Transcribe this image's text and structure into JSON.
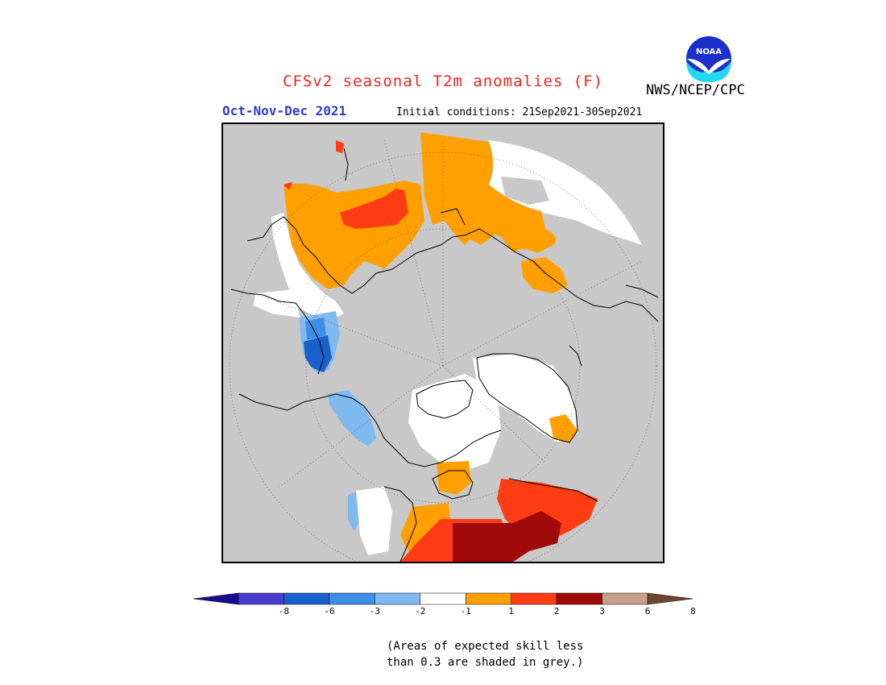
{
  "header": {
    "title": "CFSv2 seasonal T2m anomalies (F)",
    "season": "Oct-Nov-Dec 2021",
    "initial_conditions": "Initial conditions: 21Sep2021-30Sep2021",
    "agency": "NWS/NCEP/CPC"
  },
  "logo": {
    "text": "NOAA",
    "icon": "noaa-logo-icon"
  },
  "legend": {
    "ticks": [
      "-8",
      "-6",
      "-3",
      "-2",
      "-1",
      "1",
      "2",
      "3",
      "6",
      "8"
    ],
    "bins": [
      {
        "color": "#1a0a8f"
      },
      {
        "color": "#4a3ccc"
      },
      {
        "color": "#1a60cc"
      },
      {
        "color": "#3e8ee8"
      },
      {
        "color": "#80b8f0"
      },
      {
        "color": "#ffffff"
      },
      {
        "color": "#ffa000"
      },
      {
        "color": "#ff3c14"
      },
      {
        "color": "#a00a0a"
      },
      {
        "color": "#c8a08c"
      },
      {
        "color": "#6e4632"
      }
    ]
  },
  "note": {
    "line1": "(Areas of expected skill less",
    "line2": "than 0.3 are shaded in grey.)"
  },
  "colors": {
    "title": "#e8271c",
    "season": "#2b3cd6",
    "mask_grey": "#c8c8c8",
    "orange": "#ffa000",
    "red": "#ff3c14",
    "dark_red": "#a00a0a",
    "blue_light": "#80b8f0",
    "blue_mid": "#3e8ee8",
    "blue_dark": "#1a60cc"
  }
}
